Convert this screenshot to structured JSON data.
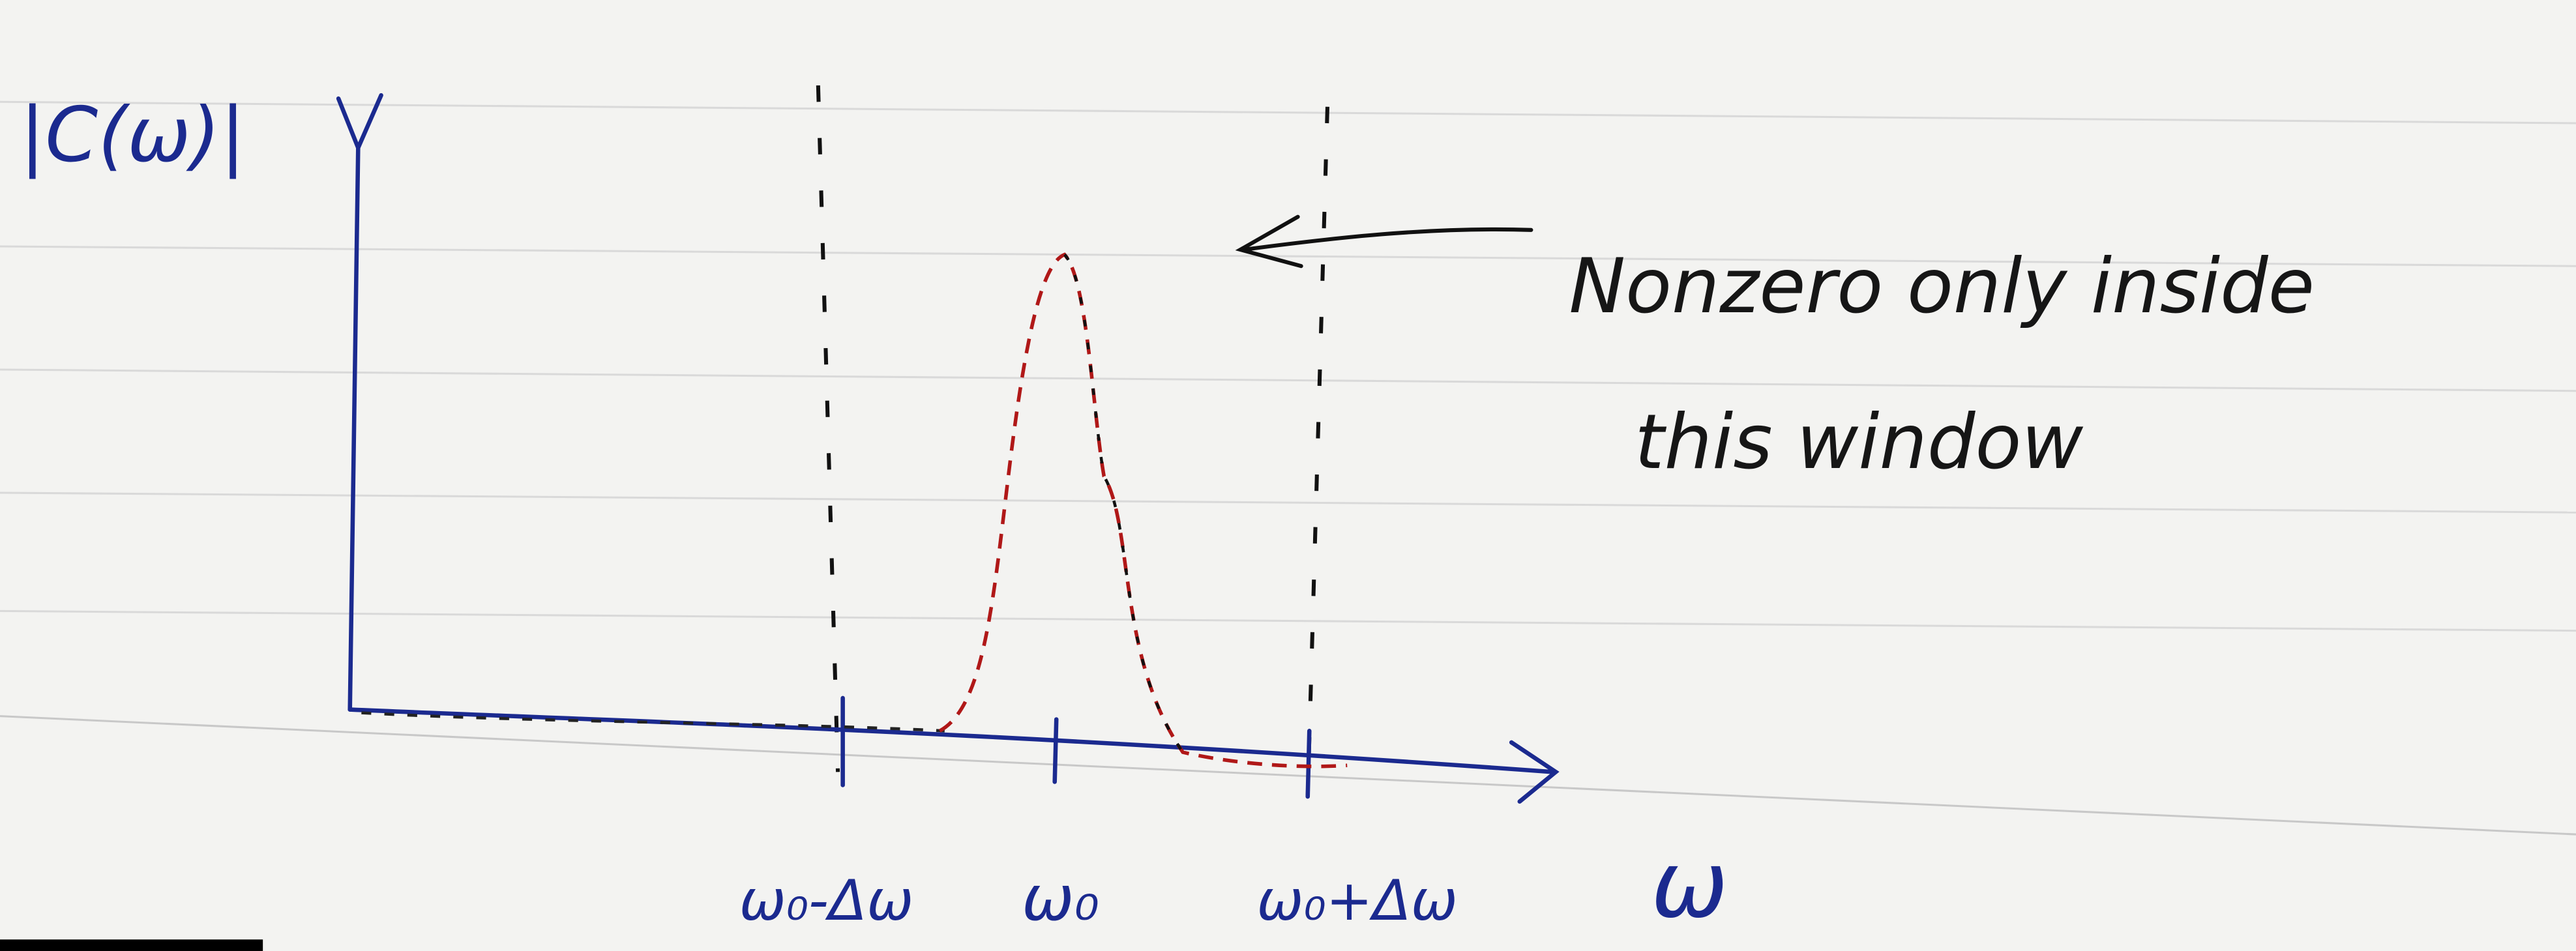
{
  "y_axis": {
    "label": "|C(ω)|"
  },
  "x_axis": {
    "label": "ω",
    "ticks": [
      {
        "label": "ω₀-Δω"
      },
      {
        "label": "ω₀"
      },
      {
        "label": "ω₀+Δω"
      }
    ]
  },
  "annotation": {
    "lines": [
      "Nonzero only inside",
      "this window"
    ]
  }
}
